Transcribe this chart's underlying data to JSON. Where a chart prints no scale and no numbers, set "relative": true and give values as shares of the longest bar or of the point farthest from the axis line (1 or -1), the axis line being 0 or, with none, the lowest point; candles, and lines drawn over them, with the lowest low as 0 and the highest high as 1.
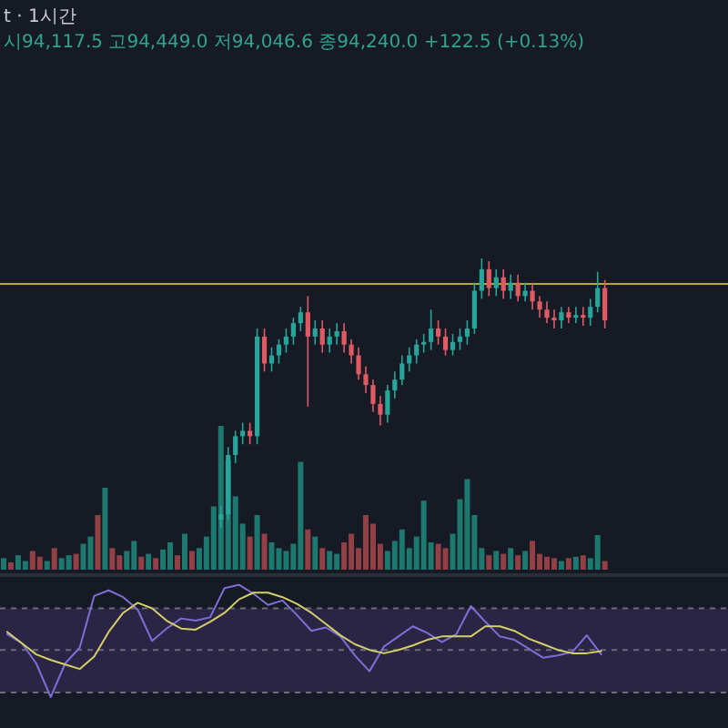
{
  "chart_data": [
    {
      "type": "candlestick",
      "title": "t · 1시간",
      "subtitle": "시94,117.5 고94,449.0 저94,046.6 종94,240.0 +122.5 (+0.13%)",
      "relative": true,
      "categories": [
        null,
        null,
        null,
        null,
        null,
        null,
        null,
        null,
        null,
        null,
        null,
        null,
        null,
        null,
        null,
        null,
        null,
        null,
        null,
        null,
        null,
        null,
        null,
        null,
        null,
        null,
        null,
        null,
        null,
        null,
        null,
        null,
        null,
        null,
        null,
        null,
        null,
        null,
        null,
        null,
        null,
        null,
        null,
        null,
        null,
        null,
        null,
        null,
        null,
        null,
        null,
        null,
        null,
        null,
        null,
        null,
        null,
        null,
        null,
        null,
        null,
        null,
        null,
        null,
        null,
        null,
        null,
        null,
        null,
        null,
        null,
        null,
        null,
        null,
        null,
        null,
        null,
        null,
        null,
        null,
        null,
        null,
        null,
        null
      ],
      "ohlc": [
        null,
        null,
        null,
        null,
        null,
        null,
        null,
        null,
        null,
        null,
        null,
        null,
        null,
        null,
        null,
        null,
        null,
        null,
        null,
        null,
        null,
        null,
        null,
        null,
        null,
        null,
        null,
        null,
        null,
        null,
        [
          0.03,
          0.08,
          0,
          0.05
        ],
        [
          0.05,
          0.3,
          0.03,
          0.27
        ],
        [
          0.27,
          0.36,
          0.24,
          0.34
        ],
        [
          0.34,
          0.39,
          0.31,
          0.36
        ],
        [
          0.36,
          0.39,
          0.31,
          0.34
        ],
        [
          0.34,
          0.74,
          0.31,
          0.71
        ],
        [
          0.71,
          0.74,
          0.58,
          0.61
        ],
        [
          0.61,
          0.67,
          0.58,
          0.64
        ],
        [
          0.64,
          0.7,
          0.61,
          0.68
        ],
        [
          0.68,
          0.74,
          0.65,
          0.71
        ],
        [
          0.71,
          0.78,
          0.68,
          0.76
        ],
        [
          0.76,
          0.82,
          0.73,
          0.8
        ],
        [
          0.8,
          0.86,
          0.45,
          0.71
        ],
        [
          0.71,
          0.77,
          0.68,
          0.74
        ],
        [
          0.74,
          0.77,
          0.65,
          0.68
        ],
        [
          0.68,
          0.74,
          0.65,
          0.71
        ],
        [
          0.71,
          0.76,
          0.68,
          0.73
        ],
        [
          0.73,
          0.76,
          0.65,
          0.68
        ],
        [
          0.68,
          0.7,
          0.61,
          0.64
        ],
        [
          0.64,
          0.67,
          0.55,
          0.57
        ],
        [
          0.57,
          0.6,
          0.5,
          0.53
        ],
        [
          0.53,
          0.55,
          0.43,
          0.46
        ],
        [
          0.46,
          0.49,
          0.38,
          0.42
        ],
        [
          0.42,
          0.53,
          0.39,
          0.51
        ],
        [
          0.51,
          0.58,
          0.48,
          0.55
        ],
        [
          0.55,
          0.64,
          0.53,
          0.61
        ],
        [
          0.61,
          0.67,
          0.58,
          0.64
        ],
        [
          0.64,
          0.7,
          0.61,
          0.68
        ],
        [
          0.68,
          0.72,
          0.65,
          0.69
        ],
        [
          0.69,
          0.81,
          0.66,
          0.74
        ],
        [
          0.74,
          0.77,
          0.68,
          0.71
        ],
        [
          0.71,
          0.74,
          0.64,
          0.66
        ],
        [
          0.66,
          0.72,
          0.64,
          0.69
        ],
        [
          0.69,
          0.74,
          0.66,
          0.71
        ],
        [
          0.71,
          0.77,
          0.68,
          0.74
        ],
        [
          0.74,
          0.91,
          0.72,
          0.88
        ],
        [
          0.88,
          1,
          0.85,
          0.96
        ],
        [
          0.96,
          0.99,
          0.86,
          0.89
        ],
        [
          0.89,
          0.96,
          0.86,
          0.93
        ],
        [
          0.93,
          0.96,
          0.85,
          0.88
        ],
        [
          0.88,
          0.94,
          0.85,
          0.91
        ],
        [
          0.91,
          0.94,
          0.84,
          0.86
        ],
        [
          0.86,
          0.91,
          0.84,
          0.88
        ],
        [
          0.88,
          0.91,
          0.81,
          0.84
        ],
        [
          0.84,
          0.86,
          0.78,
          0.81
        ],
        [
          0.81,
          0.84,
          0.76,
          0.78
        ],
        [
          0.78,
          0.81,
          0.74,
          0.77
        ],
        [
          0.77,
          0.82,
          0.74,
          0.8
        ],
        [
          0.8,
          0.82,
          0.76,
          0.78
        ],
        [
          0.78,
          0.82,
          0.76,
          0.79
        ],
        [
          0.79,
          0.82,
          0.75,
          0.78
        ],
        [
          0.78,
          0.85,
          0.75,
          0.82
        ],
        [
          0.82,
          0.95,
          0.8,
          0.89
        ],
        [
          0.89,
          0.92,
          0.74,
          0.77
        ]
      ],
      "colors": [
        null,
        null,
        null,
        null,
        null,
        null,
        null,
        null,
        null,
        null,
        null,
        null,
        null,
        null,
        null,
        null,
        null,
        null,
        null,
        null,
        null,
        null,
        null,
        null,
        null,
        null,
        null,
        null,
        null,
        null,
        "#26a69a",
        "#26a69a",
        "#26a69a",
        "#26a69a",
        "#e05a64",
        "#26a69a",
        "#e05a64",
        "#26a69a",
        "#26a69a",
        "#26a69a",
        "#26a69a",
        "#26a69a",
        "#e05a64",
        "#26a69a",
        "#e05a64",
        "#26a69a",
        "#26a69a",
        "#e05a64",
        "#e05a64",
        "#e05a64",
        "#e05a64",
        "#e05a64",
        "#e05a64",
        "#26a69a",
        "#26a69a",
        "#26a69a",
        "#26a69a",
        "#26a69a",
        "#26a69a",
        "#26a69a",
        "#e05a64",
        "#e05a64",
        "#26a69a",
        "#26a69a",
        "#26a69a",
        "#26a69a",
        "#26a69a",
        "#e05a64",
        "#26a69a",
        "#e05a64",
        "#26a69a",
        "#e05a64",
        "#26a69a",
        "#e05a64",
        "#e05a64",
        "#e05a64",
        "#e05a64",
        "#26a69a",
        "#e05a64",
        "#26a69a",
        "#e05a64",
        "#26a69a",
        "#26a69a",
        "#e05a64"
      ],
      "ref_lines": [
        {
          "axis": "y",
          "value": 0.905,
          "color": "#b5a93a",
          "line_style": "solid"
        }
      ]
    },
    {
      "type": "bar",
      "relative": true,
      "categories": [
        null,
        null,
        null,
        null,
        null,
        null,
        null,
        null,
        null,
        null,
        null,
        null,
        null,
        null,
        null,
        null,
        null,
        null,
        null,
        null,
        null,
        null,
        null,
        null,
        null,
        null,
        null,
        null,
        null,
        null,
        null,
        null,
        null,
        null,
        null,
        null,
        null,
        null,
        null,
        null,
        null,
        null,
        null,
        null,
        null,
        null,
        null,
        null,
        null,
        null,
        null,
        null,
        null,
        null,
        null,
        null,
        null,
        null,
        null,
        null,
        null,
        null,
        null,
        null,
        null,
        null,
        null,
        null,
        null,
        null,
        null,
        null,
        null,
        null,
        null,
        null,
        null,
        null,
        null,
        null,
        null,
        null,
        null,
        null
      ],
      "values": [
        0.08,
        0.05,
        0.1,
        0.06,
        0.13,
        0.09,
        0.06,
        0.15,
        0.08,
        0.1,
        0.11,
        0.18,
        0.23,
        0.38,
        0.57,
        0.15,
        0.1,
        0.13,
        0.2,
        0.09,
        0.11,
        0.08,
        0.14,
        0.19,
        0.1,
        0.25,
        0.13,
        0.15,
        0.23,
        0.44,
        1,
        0.76,
        0.51,
        0.32,
        0.23,
        0.38,
        0.25,
        0.19,
        0.15,
        0.13,
        0.18,
        0.75,
        0.28,
        0.23,
        0.15,
        0.13,
        0.11,
        0.19,
        0.25,
        0.15,
        0.38,
        0.32,
        0.18,
        0.13,
        0.2,
        0.28,
        0.15,
        0.23,
        0.48,
        0.19,
        0.18,
        0.15,
        0.25,
        0.49,
        0.63,
        0.38,
        0.15,
        0.1,
        0.13,
        0.11,
        0.15,
        0.1,
        0.13,
        0.2,
        0.11,
        0.09,
        0.08,
        0.06,
        0.08,
        0.09,
        0.1,
        0.08,
        0.24,
        0.06
      ],
      "colors": [
        "#1f8a7d",
        "#a8474b",
        "#1f8a7d",
        "#1f8a7d",
        "#a8474b",
        "#a8474b",
        "#1f8a7d",
        "#a8474b",
        "#1f8a7d",
        "#1f8a7d",
        "#a8474b",
        "#1f8a7d",
        "#1f8a7d",
        "#a8474b",
        "#1f8a7d",
        "#a8474b",
        "#a8474b",
        "#1f8a7d",
        "#1f8a7d",
        "#a8474b",
        "#1f8a7d",
        "#a8474b",
        "#1f8a7d",
        "#1f8a7d",
        "#a8474b",
        "#1f8a7d",
        "#a8474b",
        "#1f8a7d",
        "#1f8a7d",
        "#1f8a7d",
        "#1f8a7d",
        "#1f8a7d",
        "#1f8a7d",
        "#1f8a7d",
        "#a8474b",
        "#1f8a7d",
        "#a8474b",
        "#1f8a7d",
        "#1f8a7d",
        "#1f8a7d",
        "#1f8a7d",
        "#1f8a7d",
        "#a8474b",
        "#1f8a7d",
        "#a8474b",
        "#1f8a7d",
        "#1f8a7d",
        "#a8474b",
        "#a8474b",
        "#a8474b",
        "#a8474b",
        "#a8474b",
        "#a8474b",
        "#1f8a7d",
        "#1f8a7d",
        "#1f8a7d",
        "#1f8a7d",
        "#1f8a7d",
        "#1f8a7d",
        "#1f8a7d",
        "#a8474b",
        "#a8474b",
        "#1f8a7d",
        "#1f8a7d",
        "#1f8a7d",
        "#1f8a7d",
        "#1f8a7d",
        "#a8474b",
        "#1f8a7d",
        "#a8474b",
        "#1f8a7d",
        "#a8474b",
        "#1f8a7d",
        "#a8474b",
        "#a8474b",
        "#a8474b",
        "#a8474b",
        "#1f8a7d",
        "#a8474b",
        "#1f8a7d",
        "#a8474b",
        "#1f8a7d",
        "#1f8a7d",
        "#a8474b"
      ]
    },
    {
      "type": "line",
      "relative": true,
      "categories": [
        null,
        null,
        null,
        null,
        null,
        null,
        null,
        null,
        null,
        null,
        null,
        null,
        null,
        null,
        null,
        null,
        null,
        null,
        null,
        null,
        null,
        null,
        null,
        null,
        null,
        null,
        null,
        null,
        null,
        null,
        null,
        null,
        null,
        null,
        null,
        null,
        null,
        null,
        null,
        null,
        null,
        null
      ],
      "series": [
        {
          "color": "#7e6fd6",
          "values": [
            0.56,
            0.48,
            0.3,
            0,
            0.3,
            0.44,
            0.9,
            0.95,
            0.89,
            0.78,
            0.5,
            0.61,
            0.7,
            0.68,
            0.71,
            0.97,
            1,
            0.92,
            0.82,
            0.86,
            0.73,
            0.59,
            0.62,
            0.54,
            0.37,
            0.23,
            0.45,
            0.54,
            0.63,
            0.57,
            0.49,
            0.56,
            0.81,
            0.67,
            0.54,
            0.51,
            0.43,
            0.35,
            0.37,
            0.4,
            0.55,
            0.38
          ]
        },
        {
          "color": "#d4cf6a",
          "values": [
            0.58,
            0.48,
            0.38,
            0.33,
            0.29,
            0.25,
            0.36,
            0.58,
            0.75,
            0.84,
            0.79,
            0.68,
            0.61,
            0.6,
            0.67,
            0.75,
            0.87,
            0.93,
            0.93,
            0.89,
            0.83,
            0.75,
            0.65,
            0.55,
            0.47,
            0.42,
            0.39,
            0.42,
            0.46,
            0.51,
            0.54,
            0.54,
            0.54,
            0.63,
            0.63,
            0.59,
            0.52,
            0.47,
            0.42,
            0.39,
            0.39,
            0.41
          ]
        }
      ],
      "ref_lines": [
        {
          "axis": "y",
          "value": 0.79,
          "color": "#6a6d78",
          "line_style": "dashed"
        },
        {
          "axis": "y",
          "value": 0.42,
          "color": "#6a6d78",
          "line_style": "dashed"
        },
        {
          "axis": "y",
          "value": 0.04,
          "color": "#6a6d78",
          "line_style": "dashed"
        }
      ],
      "bands": [
        {
          "axis": "y",
          "from": 0.04,
          "to": 0.79,
          "color": "#2a2544"
        }
      ]
    }
  ]
}
